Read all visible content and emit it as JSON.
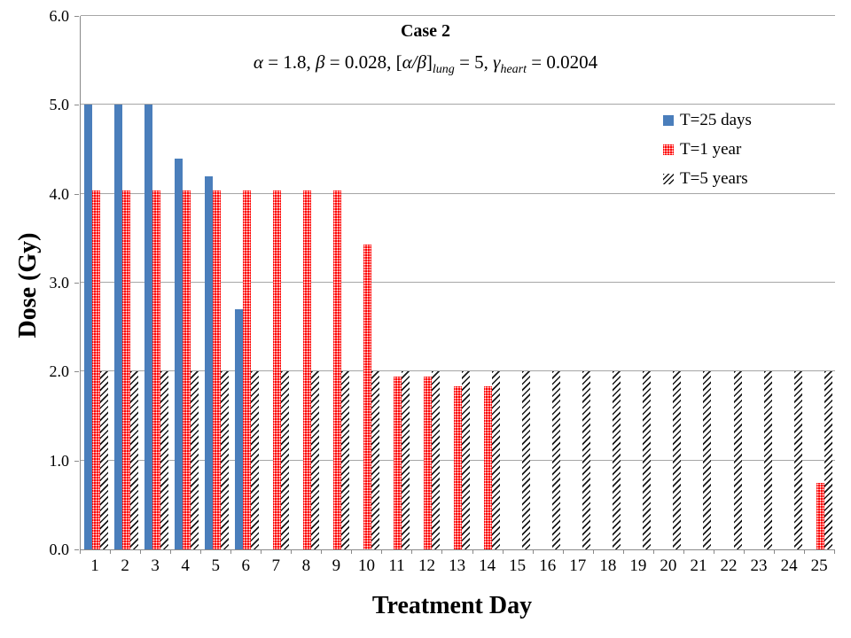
{
  "header": {
    "title": "Case 2",
    "formula": {
      "g1": "α",
      "t1": " = 1.8, ",
      "g2": "β",
      "t2": " = 0.028, [",
      "g3": "α/β",
      "t3": "]",
      "sub1": "lung",
      "t4": " = 5, ",
      "g4": "γ",
      "sub2": "heart",
      "t5": " = 0.0204"
    }
  },
  "chart_data": {
    "type": "bar",
    "title": "Case 2",
    "subtitle": "α = 1.8, β = 0.028, [α/β]_lung = 5, γ_heart = 0.0204",
    "xlabel": "Treatment Day",
    "ylabel": "Dose (Gy)",
    "ylim": [
      0,
      6
    ],
    "ytick_step": 1.0,
    "yticks": [
      "0.0",
      "1.0",
      "2.0",
      "3.0",
      "4.0",
      "5.0",
      "6.0"
    ],
    "grid": true,
    "legend_position": "upper-right-inside",
    "categories": [
      "1",
      "2",
      "3",
      "4",
      "5",
      "6",
      "7",
      "8",
      "9",
      "10",
      "11",
      "12",
      "13",
      "14",
      "15",
      "16",
      "17",
      "18",
      "19",
      "20",
      "21",
      "22",
      "23",
      "24",
      "25"
    ],
    "series": [
      {
        "name": "T=25 days",
        "color": "#4a7ebb",
        "pattern": "solid",
        "values": [
          5.0,
          5.0,
          5.0,
          4.4,
          4.2,
          2.7,
          null,
          null,
          null,
          null,
          null,
          null,
          null,
          null,
          null,
          null,
          null,
          null,
          null,
          null,
          null,
          null,
          null,
          null,
          null
        ]
      },
      {
        "name": "T=1 year",
        "color": "#fe0000",
        "pattern": "white-dots-on-red",
        "values": [
          4.04,
          4.04,
          4.04,
          4.04,
          4.04,
          4.04,
          4.04,
          4.04,
          4.04,
          3.43,
          1.94,
          1.94,
          1.83,
          1.83,
          null,
          null,
          null,
          null,
          null,
          null,
          null,
          null,
          null,
          null,
          0.75
        ]
      },
      {
        "name": "T=5 years",
        "color": "#161616",
        "pattern": "upward-diagonal-hatch",
        "values": [
          2.0,
          2.0,
          2.0,
          2.0,
          2.0,
          2.0,
          2.0,
          2.0,
          2.0,
          2.0,
          2.0,
          2.0,
          2.0,
          2.0,
          2.0,
          2.0,
          2.0,
          2.0,
          2.0,
          2.0,
          2.0,
          2.0,
          2.0,
          2.0,
          2.0
        ]
      }
    ],
    "axis_color": "#898989",
    "gridline_color": "#a6a6a6"
  }
}
